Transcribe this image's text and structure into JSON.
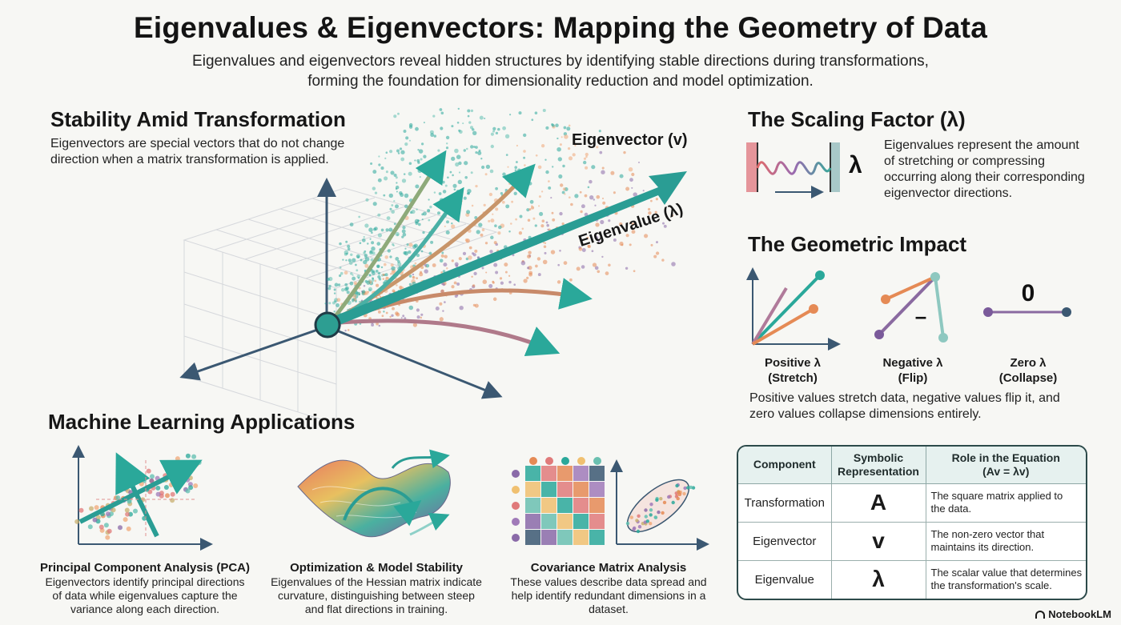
{
  "header": {
    "title": "Eigenvalues & Eigenvectors: Mapping the Geometry of Data",
    "subtitle_line1": "Eigenvalues and eigenvectors reveal hidden structures by identifying stable directions during transformations,",
    "subtitle_line2": "forming the foundation for dimensionality reduction and model optimization."
  },
  "stability": {
    "heading": "Stability Amid Transformation",
    "text_line1": "Eigenvectors are special vectors that do not change",
    "text_line2": "direction when a matrix transformation is applied.",
    "eigenvector_label": "Eigenvector (v)",
    "eigenvalue_label": "Eigenvalue (λ)"
  },
  "scaling": {
    "heading": "The Scaling Factor (λ)",
    "symbol": "λ",
    "text_lines": [
      "Eigenvalues represent the amount",
      "of stretching or compressing",
      "occurring along their corresponding",
      "eigenvector directions."
    ],
    "icon": "spring-icon"
  },
  "geometric": {
    "heading": "The Geometric Impact",
    "cases": [
      {
        "title": "Positive λ",
        "sub": "(Stretch)"
      },
      {
        "title": "Negative λ",
        "sub": "(Flip)"
      },
      {
        "title": "Zero λ",
        "sub": "(Collapse)"
      }
    ],
    "negative_symbol": "–",
    "zero_symbol": "0",
    "summary_line1": "Positive values stretch data, negative values flip it, and",
    "summary_line2": "zero values collapse dimensions entirely."
  },
  "ml": {
    "heading": "Machine Learning Applications",
    "apps": [
      {
        "title": "Principal Component Analysis (PCA)",
        "lines": [
          "Eigenvectors identify principal directions",
          "of data while eigenvalues capture the",
          "variance along each direction."
        ]
      },
      {
        "title": "Optimization & Model Stability",
        "lines": [
          "Eigenvalues of the Hessian matrix indicate",
          "curvature, distinguishing between steep",
          "and flat directions in training."
        ]
      },
      {
        "title": "Covariance Matrix Analysis",
        "lines": [
          "These values describe data spread and",
          "help identify redundant dimensions in a",
          "dataset."
        ]
      }
    ]
  },
  "table": {
    "headers": [
      "Component",
      "Symbolic Representation",
      "Role in the Equation (Av = λv)"
    ],
    "header_lines": [
      [
        "Component"
      ],
      [
        "Symbolic",
        "Representation"
      ],
      [
        "Role in the Equation",
        "(Av = λv)"
      ]
    ],
    "rows": [
      {
        "component": "Transformation",
        "symbol": "A",
        "role_lines": [
          "The square matrix applied to",
          "the data."
        ]
      },
      {
        "component": "Eigenvector",
        "symbol": "v",
        "role_lines": [
          "The non-zero vector that",
          "maintains its direction."
        ]
      },
      {
        "component": "Eigenvalue",
        "symbol": "λ",
        "role_lines": [
          "The scalar value that determines",
          "the transformation's scale."
        ]
      }
    ]
  },
  "brand": "NotebookLM",
  "colors": {
    "teal": "#2aa89a",
    "orange": "#e58a55",
    "purple": "#7a5a9a",
    "navy": "#3b5872"
  }
}
